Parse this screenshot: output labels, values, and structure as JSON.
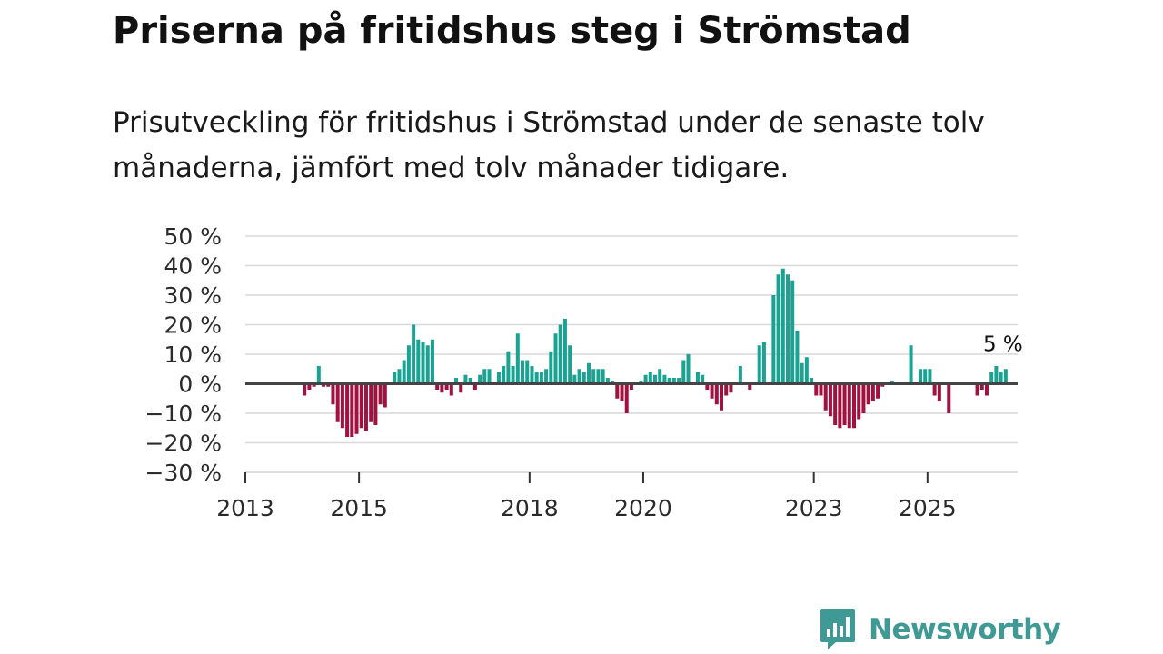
{
  "title": "Priserna på fritidshus steg i Strömstad",
  "subtitle": "Prisutveckling för fritidshus i Strömstad under de senaste tolv månaderna, jämfört med tolv månader tidigare.",
  "logo": {
    "text": "Newsworthy"
  },
  "colors": {
    "positive": "#1aa393",
    "negative": "#a0123f",
    "zero_line": "#444444",
    "grid": "#d9d9d9",
    "logo": "#3f9a95"
  },
  "chart_data": {
    "type": "bar",
    "title": "Priserna på fritidshus steg i Strömstad",
    "xlabel": "",
    "ylabel": "",
    "ylim": [
      -30,
      50
    ],
    "y_ticks": [
      50,
      40,
      30,
      20,
      10,
      0,
      -10,
      -20,
      -30
    ],
    "y_tick_labels": [
      "50 %",
      "40 %",
      "30 %",
      "20 %",
      "10 %",
      "0 %",
      "−10 %",
      "−20 %",
      "−30 %"
    ],
    "x_ticks": [
      "2013",
      "2015",
      "2018",
      "2020",
      "2023",
      "2025"
    ],
    "annotation": {
      "label": "5 %",
      "target": "last"
    },
    "start": "2013-01",
    "unit": "%",
    "values": [
      null,
      null,
      null,
      null,
      null,
      null,
      null,
      null,
      null,
      null,
      null,
      null,
      -4,
      -2,
      -1,
      6,
      -1,
      -1,
      -7,
      -13,
      -15,
      -18,
      -18,
      -17,
      -15,
      -16,
      -13,
      -14,
      -7,
      -8,
      0,
      4,
      5,
      8,
      13,
      20,
      15,
      14,
      13,
      15,
      -2,
      -3,
      -2,
      -4,
      2,
      -3,
      3,
      2,
      -2,
      3,
      5,
      5,
      0,
      4,
      6,
      11,
      6,
      17,
      8,
      8,
      6,
      4,
      4,
      5,
      11,
      17,
      20,
      22,
      13,
      3,
      5,
      4,
      7,
      5,
      5,
      5,
      2,
      1,
      -5,
      -6,
      -10,
      -2,
      0,
      1,
      3,
      4,
      3,
      5,
      3,
      2,
      2,
      2,
      8,
      10,
      0,
      4,
      3,
      -2,
      -5,
      -7,
      -9,
      -4,
      -3,
      0,
      6,
      0,
      -2,
      0,
      13,
      14,
      0,
      30,
      37,
      39,
      37,
      35,
      18,
      7,
      9,
      2,
      -4,
      -4,
      -9,
      -11,
      -14,
      -15,
      -14,
      -15,
      -15,
      -12,
      -10,
      -7,
      -6,
      -5,
      -1,
      0,
      1,
      0,
      0,
      0,
      13,
      0,
      5,
      5,
      5,
      -4,
      -6,
      0,
      -10,
      0,
      0,
      0,
      0,
      0,
      -4,
      -2,
      -4,
      4,
      6,
      4,
      5
    ]
  }
}
